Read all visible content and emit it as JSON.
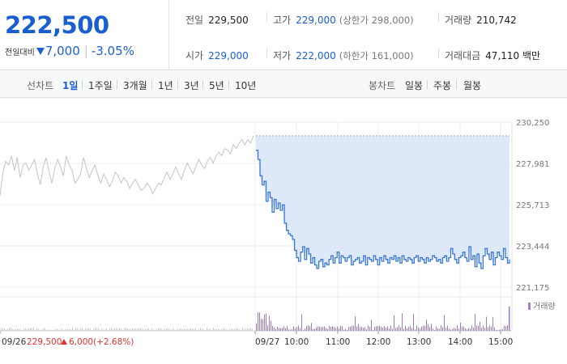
{
  "quote": {
    "price": "222,500",
    "change_label": "전일대비",
    "change": "7,000",
    "change_pct": "-3.05%",
    "prev_close_label": "전일",
    "prev_close": "229,500",
    "high_label": "고가",
    "high": "229,000",
    "upper_limit": "(상한가 298,000)",
    "volume_label": "거래량",
    "volume": "210,742",
    "open_label": "시가",
    "open": "229,000",
    "low_label": "저가",
    "low": "222,000",
    "lower_limit": "(하한가 161,000)",
    "value_label": "거래대금",
    "value": "47,110 백만"
  },
  "period_bar": {
    "line_label": "선차트",
    "line_items": [
      "1일",
      "1주일",
      "3개월",
      "1년",
      "3년",
      "5년",
      "10년"
    ],
    "line_active": 0,
    "candle_label": "봉차트",
    "candle_items": [
      "일봉",
      "주봉",
      "월봉"
    ]
  },
  "chart_data": {
    "type": "line",
    "y_ticks": [
      "230,250",
      "227,981",
      "225,713",
      "223,444",
      "221,175"
    ],
    "ylim": [
      221175,
      230250
    ],
    "x_ticks": [
      "09/27",
      "10:00",
      "11:00",
      "12:00",
      "13:00",
      "14:00",
      "15:00"
    ],
    "prev_day_label": "09/26",
    "prev_day_close": "229,500",
    "prev_day_change": "6,000",
    "prev_day_change_pct": "(+2.68%)",
    "volume_legend": "거래량",
    "prev_day_series": [
      226200,
      227500,
      228100,
      227900,
      228400,
      227600,
      228300,
      227200,
      227900,
      228000,
      227600,
      227900,
      228200,
      227400,
      226800,
      227800,
      228300,
      227500,
      226900,
      227700,
      228200,
      227800,
      227300,
      228400,
      227900,
      227600,
      226900,
      227100,
      227400,
      228300,
      227700,
      227200,
      227600,
      227900,
      227300,
      226900,
      227400,
      227100,
      226700,
      227000,
      227500,
      227300,
      226900,
      227200,
      227000,
      226600,
      226900,
      227100,
      226800,
      226500,
      226600,
      226900,
      226700,
      226300,
      226600,
      226900,
      226800,
      227200,
      227500,
      227100,
      227400,
      227800,
      227400,
      227100,
      227600,
      228000,
      227700,
      227400,
      227800,
      228200,
      227900,
      227700,
      228100,
      228300,
      228000,
      228400,
      228600,
      228400,
      228800,
      228700,
      228500,
      229000,
      228800,
      229100,
      229300,
      229000,
      229300,
      229100,
      229500
    ],
    "today_series": [
      228700,
      228200,
      227300,
      226800,
      227000,
      225900,
      226400,
      226100,
      225300,
      226000,
      225500,
      225800,
      225400,
      225700,
      224700,
      224300,
      224100,
      224000,
      223800,
      223200,
      222800,
      222600,
      223100,
      223400,
      222700,
      223300,
      223000,
      222500,
      222800,
      222400,
      222200,
      222600,
      222700,
      222300,
      222500,
      222400,
      222700,
      222900,
      222500,
      222800,
      223100,
      222500,
      222900,
      222800,
      222600,
      222800,
      222900,
      222400,
      222600,
      222700,
      222800,
      222500,
      222600,
      222900,
      222400,
      222800,
      222700,
      222600,
      222900,
      222700,
      222400,
      222800,
      222600,
      222900,
      222700,
      222500,
      222800,
      222700,
      222900,
      222600,
      222800,
      222500,
      222900,
      222700,
      222600,
      222800,
      222700,
      222500,
      222800,
      222900,
      222600,
      222800,
      222700,
      222500,
      222800,
      222600,
      222700,
      222900,
      222800,
      222600,
      222700,
      222500,
      222800,
      222900,
      222600,
      222800,
      223300,
      223000,
      222700,
      222500,
      222800,
      222900,
      223100,
      222800,
      222600,
      223400,
      222700,
      222900,
      222300,
      223000,
      222500,
      222200,
      222900,
      223300,
      223000,
      222700,
      223100,
      222400,
      222800,
      223100,
      222900,
      222700,
      223300,
      222800,
      222500,
      222700
    ]
  }
}
